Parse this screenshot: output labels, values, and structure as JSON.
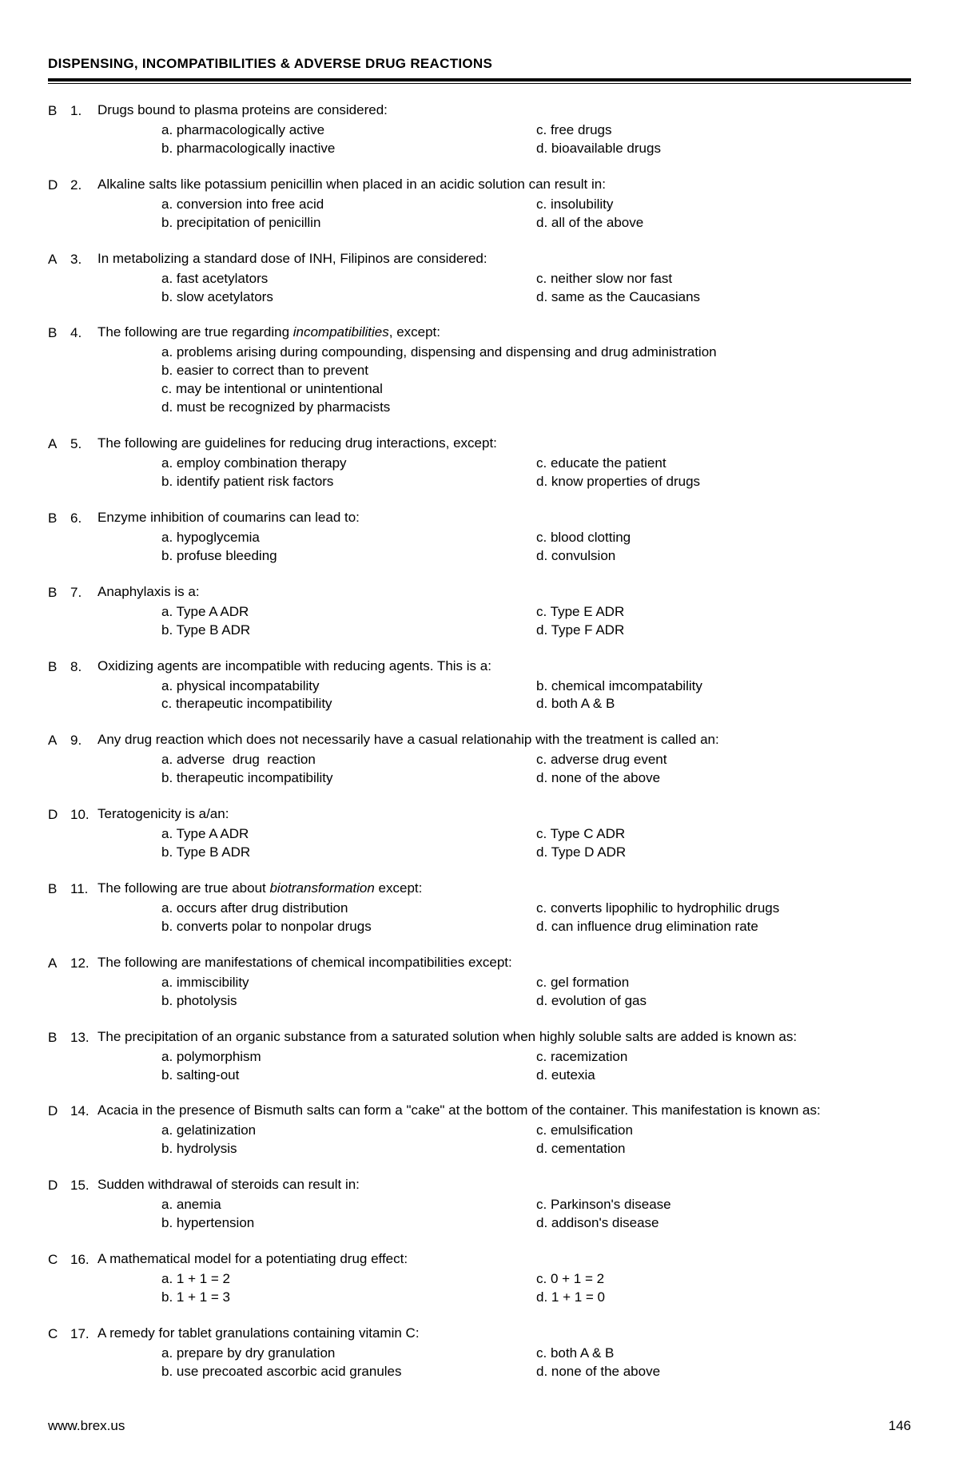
{
  "header": {
    "title": "DISPENSING, INCOMPATIBILITIES & ADVERSE DRUG REACTIONS"
  },
  "footer": {
    "site": "www.brex.us",
    "page": "146"
  },
  "questions": [
    {
      "answer": "B",
      "num": "1.",
      "stem": "Drugs bound to plasma proteins are considered:",
      "layout": "two",
      "left": [
        "a. pharmacologically active",
        "b. pharmacologically inactive"
      ],
      "right": [
        "c. free drugs",
        "d. bioavailable drugs"
      ]
    },
    {
      "answer": "D",
      "num": "2.",
      "stem": "Alkaline salts like potassium penicillin when placed in an acidic solution can result in:",
      "layout": "two",
      "left": [
        "a. conversion into free acid",
        "b. precipitation of penicillin"
      ],
      "right": [
        "c. insolubility",
        "d. all of the above"
      ]
    },
    {
      "answer": "A",
      "num": "3.",
      "stem": "In metabolizing a standard dose of INH, Filipinos are considered:",
      "layout": "two",
      "left": [
        "a. fast acetylators",
        "b. slow acetylators"
      ],
      "right": [
        "c. neither slow nor fast",
        "d. same as the Caucasians"
      ]
    },
    {
      "answer": "B",
      "num": "4.",
      "stem_html": "The following are true regarding <span class=\"italic\">incompatibilities</span>, except:",
      "layout": "one",
      "opts": [
        "a. problems arising during compounding, dispensing and dispensing and drug administration",
        "b. easier to correct than to prevent",
        "c. may be intentional or unintentional",
        "d. must be recognized by pharmacists"
      ]
    },
    {
      "answer": "A",
      "num": "5.",
      "stem": "The following are guidelines for reducing drug interactions, except:",
      "layout": "two",
      "left": [
        "a. employ combination therapy",
        "b. identify patient risk factors"
      ],
      "right": [
        "c. educate the patient",
        "d. know properties of drugs"
      ]
    },
    {
      "answer": "B",
      "num": "6.",
      "stem": "Enzyme inhibition of coumarins can lead to:",
      "layout": "two",
      "left": [
        "a. hypoglycemia",
        "b. profuse bleeding"
      ],
      "right": [
        "c. blood clotting",
        "d. convulsion"
      ]
    },
    {
      "answer": "B",
      "num": "7.",
      "stem": "Anaphylaxis is a:",
      "layout": "two",
      "left": [
        "a. Type A ADR",
        "b. Type B ADR"
      ],
      "right": [
        "c. Type E ADR",
        "d. Type F ADR"
      ]
    },
    {
      "answer": "B",
      "num": "8.",
      "stem": "Oxidizing agents are incompatible with reducing agents. This is a:",
      "layout": "two",
      "left": [
        "a. physical incompatability",
        "c. therapeutic incompatibility"
      ],
      "right": [
        "b. chemical imcompatability",
        "d. both A & B"
      ]
    },
    {
      "answer": "A",
      "num": "9.",
      "stem": "Any drug reaction which does not necessarily have a casual relationahip with the treatment is called an:",
      "layout": "two",
      "left": [
        "a. adverse  drug  reaction",
        "b. therapeutic incompatibility"
      ],
      "right": [
        "c. adverse drug event",
        "d. none of the above"
      ]
    },
    {
      "answer": "D",
      "num": "10.",
      "stem": "Teratogenicity is a/an:",
      "layout": "two",
      "left": [
        "a. Type A ADR",
        "b. Type B ADR"
      ],
      "right": [
        "c. Type C ADR",
        "d. Type D ADR"
      ]
    },
    {
      "answer": "B",
      "num": "11.",
      "stem_html": "The following are true about <span class=\"italic\">biotransformation</span> except:",
      "layout": "two",
      "left": [
        "a. occurs after drug distribution",
        "b. converts polar to nonpolar drugs"
      ],
      "right": [
        "c. converts lipophilic to hydrophilic drugs",
        "d. can influence drug elimination rate"
      ]
    },
    {
      "answer": "A",
      "num": "12.",
      "stem": "The following are manifestations of chemical incompatibilities except:",
      "layout": "two",
      "left": [
        "a. immiscibility",
        "b. photolysis"
      ],
      "right": [
        "c. gel formation",
        "d. evolution of gas"
      ]
    },
    {
      "answer": "B",
      "num": "13.",
      "stem": "The precipitation of an organic substance from a saturated solution when highly soluble salts are added is known as:",
      "layout": "two",
      "left": [
        "a. polymorphism",
        "b. salting-out"
      ],
      "right": [
        "c. racemization",
        "d. eutexia"
      ]
    },
    {
      "answer": "D",
      "num": "14.",
      "stem": "Acacia in the presence of Bismuth salts can form a \"cake\" at the bottom of the container. This manifestation is known as:",
      "layout": "two",
      "left": [
        "a. gelatinization",
        "b. hydrolysis"
      ],
      "right": [
        "c. emulsification",
        "d. cementation"
      ]
    },
    {
      "answer": "D",
      "num": "15.",
      "stem": "Sudden withdrawal of steroids can result in:",
      "layout": "two",
      "left": [
        "a. anemia",
        "b. hypertension"
      ],
      "right": [
        "c. Parkinson's disease",
        "d. addison's disease"
      ]
    },
    {
      "answer": "C",
      "num": "16.",
      "stem": "A mathematical model for a potentiating drug effect:",
      "layout": "two",
      "left": [
        "a. 1 + 1 = 2",
        "b. 1 + 1 = 3"
      ],
      "right": [
        "c. 0 + 1 = 2",
        "d. 1 + 1 = 0"
      ]
    },
    {
      "answer": "C",
      "num": "17.",
      "stem": "A remedy for tablet granulations containing vitamin C:",
      "layout": "two",
      "left": [
        "a. prepare by dry granulation",
        "b. use precoated ascorbic acid granules"
      ],
      "right": [
        "c. both A & B",
        "d. none of the above"
      ]
    }
  ]
}
